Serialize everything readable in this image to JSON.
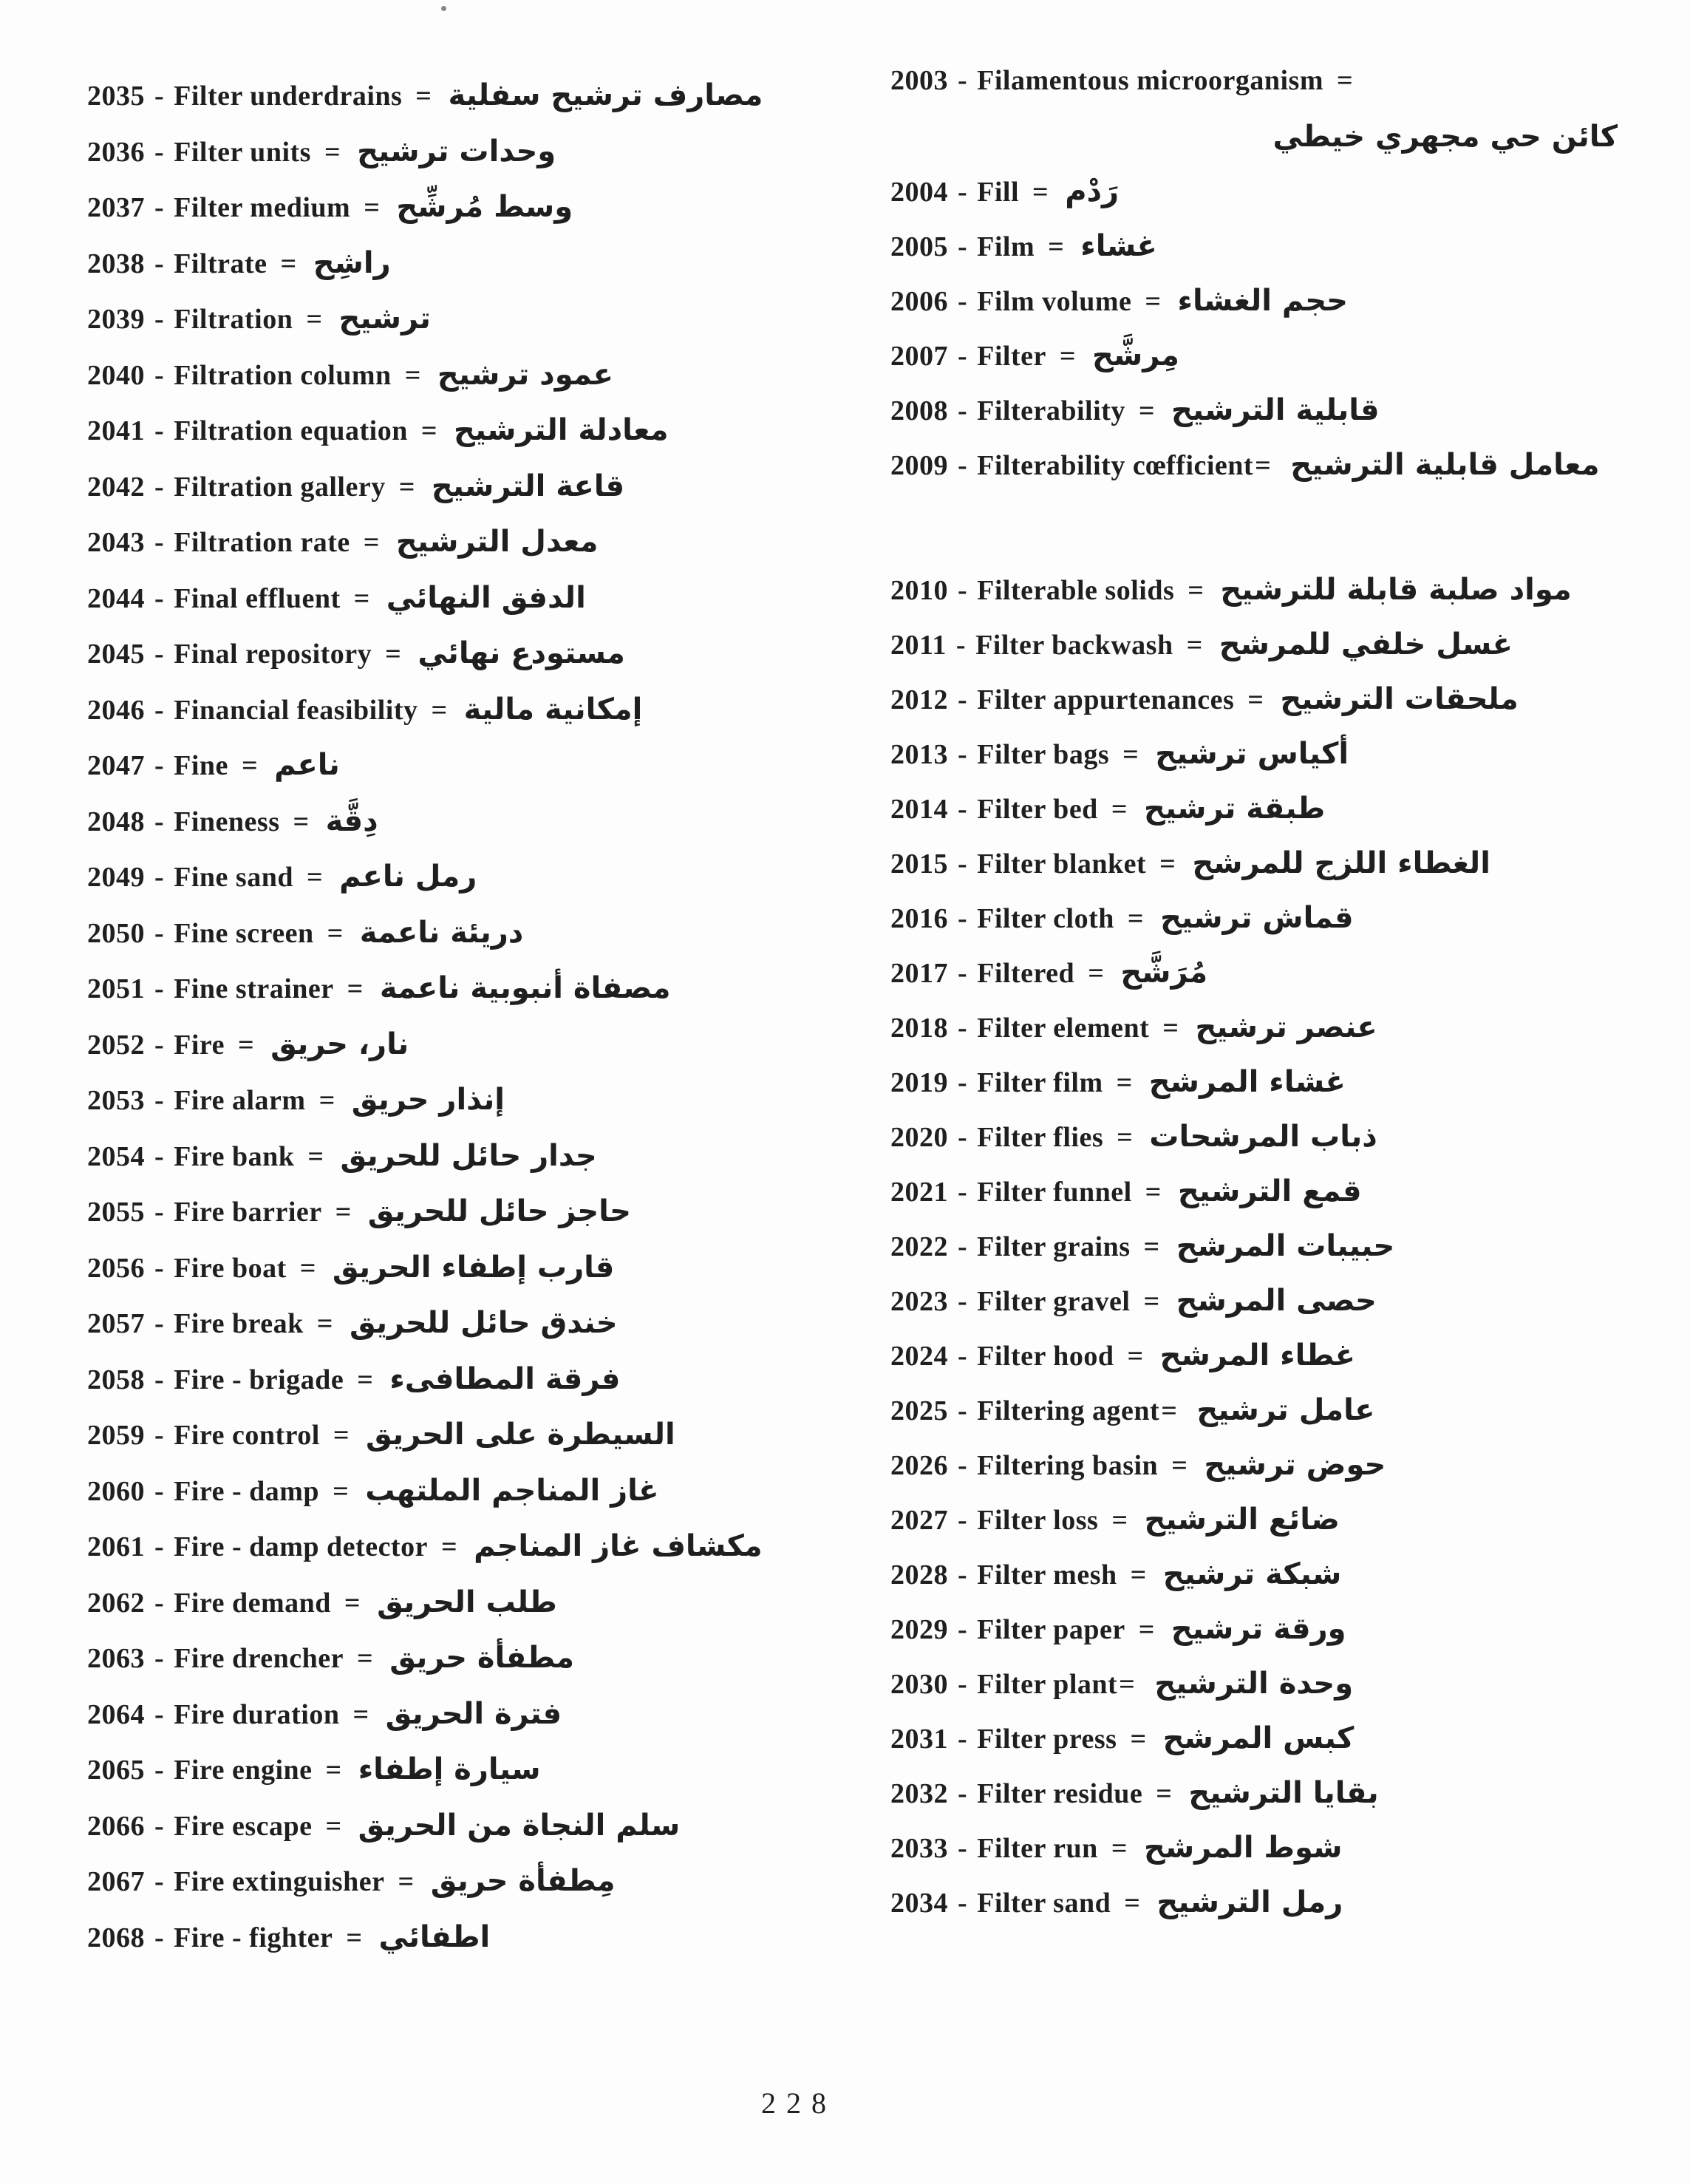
{
  "page": {
    "number": "228",
    "dash": "-",
    "equals": "=",
    "text_color": "#1f1f1f",
    "background_color": "#fdfdfd"
  },
  "columns": {
    "left": {
      "entries": [
        {
          "num": "2035",
          "en": "Filter underdrains",
          "ar": "مصارف ترشيح سفلية"
        },
        {
          "num": "2036",
          "en": "Filter units",
          "ar": "وحدات ترشيح"
        },
        {
          "num": "2037",
          "en": "Filter medium",
          "ar": "وسط مُرشِّح"
        },
        {
          "num": "2038",
          "en": "Filtrate",
          "ar": "راشِح"
        },
        {
          "num": "2039",
          "en": "Filtration",
          "ar": "ترشيح"
        },
        {
          "num": "2040",
          "en": "Filtration column",
          "ar": "عمود ترشيح"
        },
        {
          "num": "2041",
          "en": "Filtration equation",
          "ar": "معادلة الترشيح"
        },
        {
          "num": "2042",
          "en": "Filtration gallery",
          "ar": "قاعة الترشيح"
        },
        {
          "num": "2043",
          "en": "Filtration rate",
          "ar": "معدل الترشيح"
        },
        {
          "num": "2044",
          "en": "Final effluent",
          "ar": "الدفق النهائي"
        },
        {
          "num": "2045",
          "en": "Final repository",
          "ar": "مستودع نهائي"
        },
        {
          "num": "2046",
          "en": "Financial feasibility",
          "ar": "إمكانية مالية"
        },
        {
          "num": "2047",
          "en": "Fine",
          "ar": "ناعم"
        },
        {
          "num": "2048",
          "en": "Fineness",
          "ar": "دِقَّة"
        },
        {
          "num": "2049",
          "en": "Fine sand",
          "ar": "رمل ناعم"
        },
        {
          "num": "2050",
          "en": "Fine screen",
          "ar": "دريئة ناعمة"
        },
        {
          "num": "2051",
          "en": "Fine strainer",
          "ar": "مصفاة أنبوبية ناعمة"
        },
        {
          "num": "2052",
          "en": "Fire",
          "ar": "نار، حريق"
        },
        {
          "num": "2053",
          "en": "Fire alarm",
          "ar": "إنذار حريق"
        },
        {
          "num": "2054",
          "en": "Fire bank",
          "ar": "جدار حائل للحريق"
        },
        {
          "num": "2055",
          "en": "Fire barrier",
          "ar": "حاجز حائل للحريق"
        },
        {
          "num": "2056",
          "en": "Fire boat",
          "ar": "قارب إطفاء الحريق"
        },
        {
          "num": "2057",
          "en": "Fire break",
          "ar": "خندق حائل للحريق"
        },
        {
          "num": "2058",
          "en": "Fire - brigade",
          "ar": "فرقة المطافىء"
        },
        {
          "num": "2059",
          "en": "Fire control",
          "ar": "السيطرة على الحريق"
        },
        {
          "num": "2060",
          "en": "Fire - damp",
          "ar": "غاز المناجم الملتهب"
        },
        {
          "num": "2061",
          "en": "Fire - damp detector",
          "ar": "مكشاف غاز المناجم"
        },
        {
          "num": "2062",
          "en": "Fire demand",
          "ar": "طلب الحريق"
        },
        {
          "num": "2063",
          "en": "Fire drencher",
          "ar": "مطفأة حريق"
        },
        {
          "num": "2064",
          "en": "Fire duration",
          "ar": "فترة الحريق"
        },
        {
          "num": "2065",
          "en": "Fire engine",
          "ar": "سيارة إطفاء"
        },
        {
          "num": "2066",
          "en": "Fire escape",
          "ar": "سلم النجاة من الحريق"
        },
        {
          "num": "2067",
          "en": "Fire extinguisher",
          "ar": "مِطفأة حريق"
        },
        {
          "num": "2068",
          "en": "Fire - fighter",
          "ar": "اطفائي"
        }
      ]
    },
    "right": {
      "entries": [
        {
          "num": "2003",
          "en": "Filamentous microorganism",
          "ar": "كائن حي مجهري خيطي",
          "ar_own_line": true
        },
        {
          "num": "2004",
          "en": "Fill",
          "ar": "رَدْم"
        },
        {
          "num": "2005",
          "en": "Film",
          "ar": "غشاء"
        },
        {
          "num": "2006",
          "en": "Film volume",
          "ar": "حجم الغشاء"
        },
        {
          "num": "2007",
          "en": "Filter",
          "ar": "مِرشَّح"
        },
        {
          "num": "2008",
          "en": "Filterability",
          "ar": "قابلية الترشيح"
        },
        {
          "num": "2009",
          "en": "Filterability cœfficient",
          "ar": "معامل قابلية الترشيح",
          "tight_eq": true
        },
        {
          "num": "2010",
          "en": "Filterable solids",
          "ar": "مواد صلبة قابلة للترشيح",
          "gap_before": true
        },
        {
          "num": "2011",
          "en": "Filter backwash",
          "ar": "غسل خلفي للمرشح"
        },
        {
          "num": "2012",
          "en": "Filter appurtenances",
          "ar": "ملحقات الترشيح"
        },
        {
          "num": "2013",
          "en": "Filter bags",
          "ar": "أكياس ترشيح"
        },
        {
          "num": "2014",
          "en": "Filter bed",
          "ar": "طبقة ترشيح"
        },
        {
          "num": "2015",
          "en": "Filter blanket",
          "ar": "الغطاء اللزج للمرشح"
        },
        {
          "num": "2016",
          "en": "Filter cloth",
          "ar": "قماش ترشيح"
        },
        {
          "num": "2017",
          "en": "Filtered",
          "ar": "مُرَشَّح"
        },
        {
          "num": "2018",
          "en": "Filter element",
          "ar": "عنصر ترشيح"
        },
        {
          "num": "2019",
          "en": "Filter film",
          "ar": "غشاء المرشح"
        },
        {
          "num": "2020",
          "en": "Filter flies",
          "ar": "ذباب المرشحات"
        },
        {
          "num": "2021",
          "en": "Filter funnel",
          "ar": "قمع الترشيح"
        },
        {
          "num": "2022",
          "en": "Filter grains",
          "ar": "حبيبات المرشح"
        },
        {
          "num": "2023",
          "en": "Filter gravel",
          "ar": "حصى المرشح"
        },
        {
          "num": "2024",
          "en": "Filter hood",
          "ar": "غطاء المرشح"
        },
        {
          "num": "2025",
          "en": "Filtering agent",
          "ar": "عامل ترشيح",
          "tight_eq": true
        },
        {
          "num": "2026",
          "en": "Filtering basin",
          "ar": "حوض ترشيح"
        },
        {
          "num": "2027",
          "en": "Filter loss",
          "ar": "ضائع الترشيح"
        },
        {
          "num": "2028",
          "en": "Filter mesh",
          "ar": "شبكة ترشيح"
        },
        {
          "num": "2029",
          "en": "Filter paper",
          "ar": "ورقة ترشيح"
        },
        {
          "num": "2030",
          "en": "Filter plant",
          "ar": "وحدة الترشيح",
          "tight_eq": true
        },
        {
          "num": "2031",
          "en": "Filter press",
          "ar": "كبس المرشح"
        },
        {
          "num": "2032",
          "en": "Filter residue",
          "ar": "بقايا الترشيح"
        },
        {
          "num": "2033",
          "en": "Filter run",
          "ar": "شوط المرشح"
        },
        {
          "num": "2034",
          "en": "Filter sand",
          "ar": "رمل الترشيح"
        }
      ]
    }
  }
}
